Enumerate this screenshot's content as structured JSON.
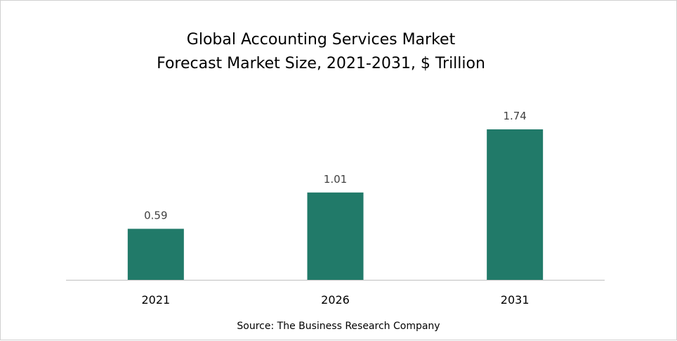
{
  "chart_data": {
    "type": "bar",
    "title": [
      "Global Accounting Services Market",
      "Forecast Market Size, 2021-2031, $ Trillion"
    ],
    "categories": [
      "2021",
      "2026",
      "2031"
    ],
    "values": [
      0.59,
      1.01,
      1.74
    ],
    "data_labels": [
      "0.59",
      "1.01",
      "1.74"
    ],
    "xlabel": "",
    "ylabel": "",
    "ylim": [
      0,
      2.2
    ],
    "grid": false,
    "bar_color": "#217A69",
    "source": "Source: The Business Research Company"
  }
}
